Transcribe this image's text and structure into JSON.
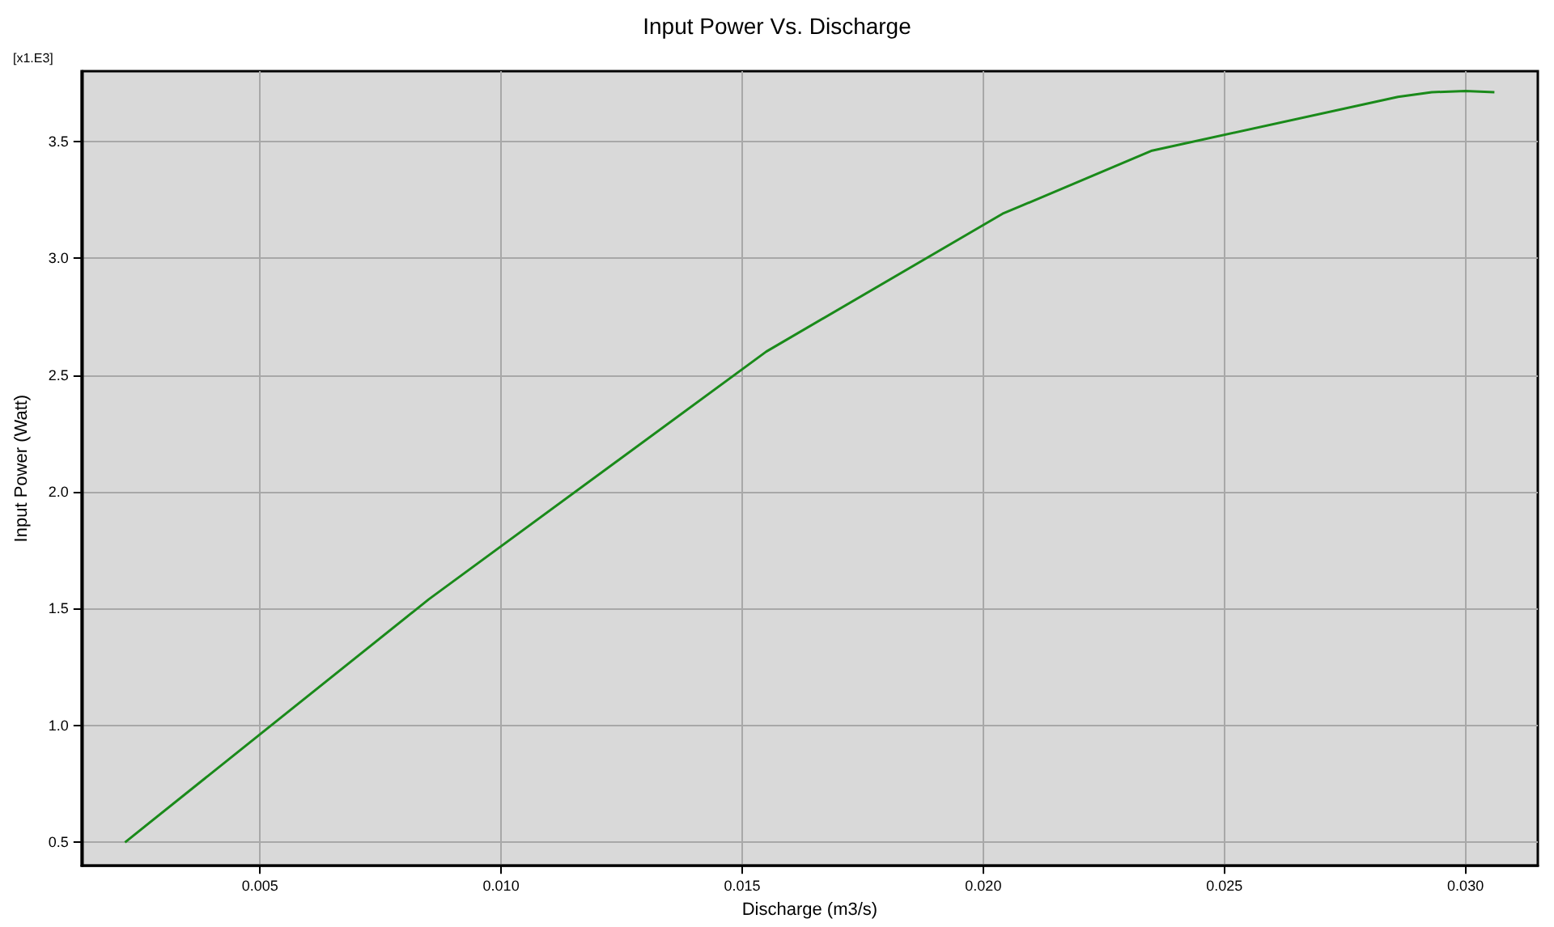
{
  "chart_data": {
    "type": "line",
    "title": "Input Power Vs. Discharge",
    "xlabel": "Discharge (m3/s)",
    "ylabel": "Input Power (Watt)",
    "annotations": [
      "[x1.E3]"
    ],
    "x": [
      0.0022,
      0.0085,
      0.0155,
      0.0204,
      0.0235,
      0.0286,
      0.0293,
      0.03,
      0.0306
    ],
    "series": [
      {
        "color": "#1a8a1a",
        "values": [
          0.5,
          1.54,
          2.6,
          3.19,
          3.46,
          3.69,
          3.71,
          3.715,
          3.71
        ]
      }
    ],
    "xlim": [
      0.0013,
      0.0315
    ],
    "ylim": [
      0.4,
      3.8
    ],
    "xticks": [
      {
        "value": 0.005,
        "label": "0.005"
      },
      {
        "value": 0.01,
        "label": "0.010"
      },
      {
        "value": 0.015,
        "label": "0.015"
      },
      {
        "value": 0.02,
        "label": "0.020"
      },
      {
        "value": 0.025,
        "label": "0.025"
      },
      {
        "value": 0.03,
        "label": "0.030"
      }
    ],
    "yticks": [
      {
        "value": 0.5,
        "label": "0.5"
      },
      {
        "value": 1,
        "label": "1.0"
      },
      {
        "value": 1.5,
        "label": "1.5"
      },
      {
        "value": 2,
        "label": "2.0"
      },
      {
        "value": 2.5,
        "label": "2.5"
      },
      {
        "value": 3,
        "label": "3.0"
      },
      {
        "value": 3.5,
        "label": "3.5"
      }
    ],
    "grid": true,
    "marker": "none",
    "line_style": "solid"
  }
}
